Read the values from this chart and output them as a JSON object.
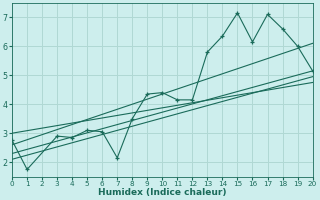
{
  "xlabel": "Humidex (Indice chaleur)",
  "bg_color": "#cdeeed",
  "grid_color": "#b0d8d4",
  "line_color": "#1a6b5a",
  "xlim": [
    0,
    20
  ],
  "ylim": [
    1.5,
    7.5
  ],
  "xticks": [
    0,
    1,
    2,
    3,
    4,
    5,
    6,
    7,
    8,
    9,
    10,
    11,
    12,
    13,
    14,
    15,
    16,
    17,
    18,
    19,
    20
  ],
  "yticks": [
    2,
    3,
    4,
    5,
    6,
    7
  ],
  "scatter_x": [
    0,
    1,
    3,
    4,
    5,
    6,
    7,
    8,
    9,
    10,
    11,
    12,
    13,
    14,
    15,
    16,
    17,
    18,
    19,
    20
  ],
  "scatter_y": [
    2.75,
    1.75,
    2.9,
    2.85,
    3.1,
    3.05,
    2.15,
    3.5,
    4.35,
    4.4,
    4.15,
    4.15,
    5.8,
    6.35,
    7.15,
    6.15,
    7.1,
    6.6,
    6.0,
    5.15
  ],
  "trend_lines": [
    {
      "x": [
        0,
        20
      ],
      "y": [
        2.6,
        6.1
      ]
    },
    {
      "x": [
        0,
        20
      ],
      "y": [
        2.3,
        5.15
      ]
    },
    {
      "x": [
        0,
        20
      ],
      "y": [
        2.1,
        4.95
      ]
    },
    {
      "x": [
        0,
        20
      ],
      "y": [
        3.0,
        4.75
      ]
    }
  ]
}
